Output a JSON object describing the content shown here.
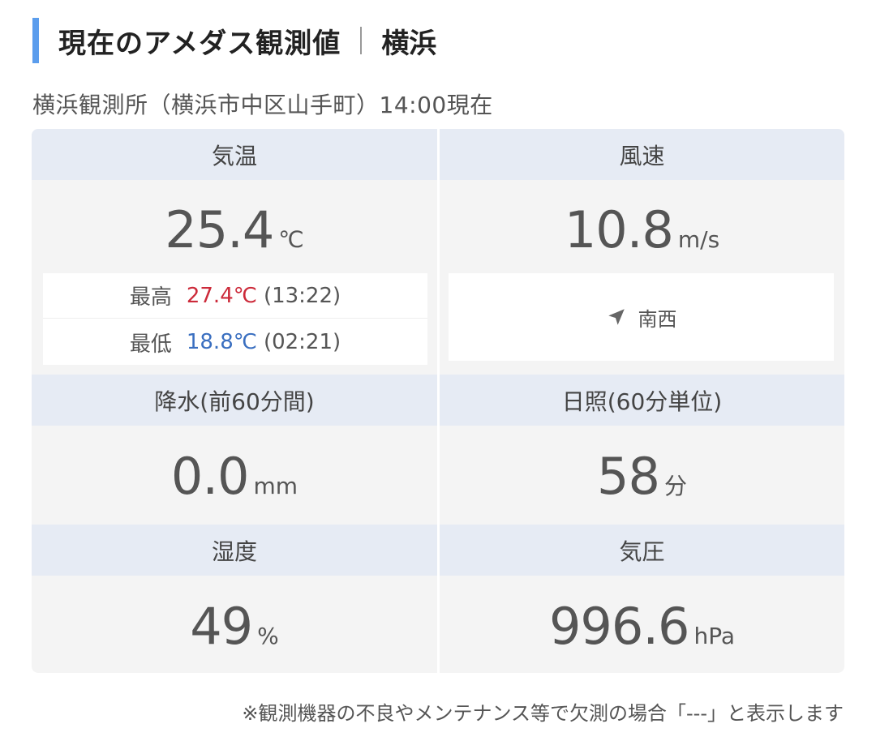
{
  "header": {
    "title": "現在のアメダス観測値",
    "place": "横浜"
  },
  "station_line": "横浜観測所（横浜市中区山手町）14:00現在",
  "temperature": {
    "label": "気温",
    "value": "25.4",
    "unit": "℃",
    "max_label": "最高",
    "max_value": "27.4℃",
    "max_time": "(13:22)",
    "min_label": "最低",
    "min_value": "18.8℃",
    "min_time": "(02:21)"
  },
  "wind": {
    "label": "風速",
    "value": "10.8",
    "unit": "m/s",
    "direction": "南西",
    "direction_icon": "navigation-arrow-icon"
  },
  "precipitation": {
    "label": "降水(前60分間)",
    "value": "0.0",
    "unit": "mm"
  },
  "sunshine": {
    "label": "日照(60分単位)",
    "value": "58",
    "unit": "分"
  },
  "humidity": {
    "label": "湿度",
    "value": "49",
    "unit": "%"
  },
  "pressure": {
    "label": "気圧",
    "value": "996.6",
    "unit": "hPa"
  },
  "note": "※観測機器の不良やメンテナンス等で欠測の場合「---」と表示します",
  "colors": {
    "accent_bar": "#5b9ded",
    "max_temp": "#cc2a3a",
    "min_temp": "#3a6fc0",
    "cell_header_bg": "#e6ebf4",
    "cell_bg": "#f4f4f4"
  }
}
